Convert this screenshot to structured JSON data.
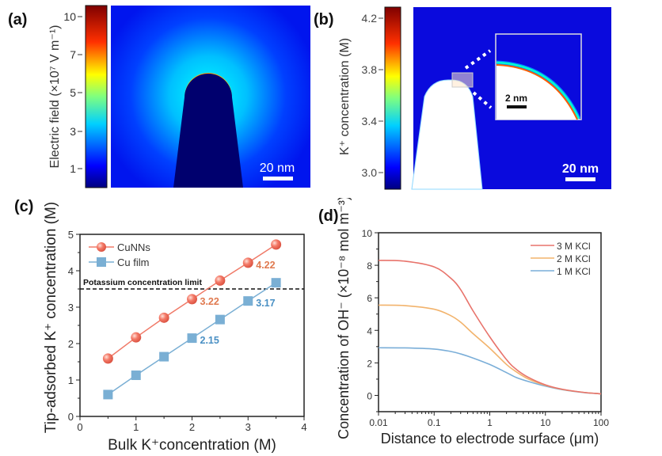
{
  "panels": {
    "a": {
      "label": "(a)",
      "colorbar_title": "Electric field (×10⁷ V m⁻¹)",
      "colorbar_ticks": [
        "10",
        "7",
        "5",
        "3",
        "1"
      ],
      "colorbar_range": [
        0,
        10.5
      ],
      "scale_bar": "20 nm"
    },
    "b": {
      "label": "(b)",
      "colorbar_title": "K⁺ concentration (M)",
      "colorbar_ticks": [
        "4.2",
        "3.8",
        "3.4",
        "3.0"
      ],
      "colorbar_range": [
        2.9,
        4.3
      ],
      "scale_bar": "20 nm",
      "inset_scale_bar": "2 nm"
    },
    "c": {
      "label": "(c)"
    },
    "d": {
      "label": "(d)"
    }
  },
  "chart_data": [
    {
      "type": "line",
      "panel": "c",
      "xlabel": "Bulk K⁺concentration (M)",
      "ylabel": "Tip-adsorbed K⁺ concentration (M)",
      "xlim": [
        0,
        4
      ],
      "ylim": [
        0,
        5
      ],
      "xticks": [
        "0",
        "1",
        "2",
        "3",
        "4"
      ],
      "yticks": [
        "0",
        "1",
        "2",
        "3",
        "4",
        "5"
      ],
      "x": [
        0.5,
        1.0,
        1.5,
        2.0,
        2.5,
        3.0,
        3.5
      ],
      "series": [
        {
          "name": "CuNNs",
          "marker": "circle",
          "color": "#f07a68",
          "label_color": "#e07a50",
          "values": [
            1.59,
            2.17,
            2.71,
            3.22,
            3.73,
            4.22,
            4.72
          ]
        },
        {
          "name": "Cu film",
          "marker": "square",
          "color": "#7aafd4",
          "label_color": "#4a90c4",
          "values": [
            0.6,
            1.13,
            1.64,
            2.15,
            2.66,
            3.17,
            3.67
          ]
        }
      ],
      "reference_line": {
        "label": "Potassium concentration limit",
        "y": 3.5
      },
      "annotations": [
        {
          "series": "CuNNs",
          "x": 2.0,
          "text": "3.22"
        },
        {
          "series": "CuNNs",
          "x": 3.0,
          "text": "4.22"
        },
        {
          "series": "Cu film",
          "x": 2.0,
          "text": "2.15"
        },
        {
          "series": "Cu film",
          "x": 3.0,
          "text": "3.17"
        }
      ],
      "legend_position": "top-left"
    },
    {
      "type": "line",
      "panel": "d",
      "xlabel": "Distance to electrode surface (μm)",
      "ylabel": "Concentration of OH⁻ (×10⁻⁸ mol m⁻³)",
      "xscale": "log",
      "xlim": [
        0.01,
        100
      ],
      "ylim": [
        -1,
        10
      ],
      "xticks": [
        "0.01",
        "0.1",
        "1",
        "10",
        "100"
      ],
      "yticks": [
        "0",
        "2",
        "4",
        "6",
        "8",
        "10"
      ],
      "x": [
        0.01,
        0.03,
        0.1,
        0.2,
        0.3,
        0.5,
        1,
        2,
        3,
        5,
        10,
        20,
        50,
        100
      ],
      "series": [
        {
          "name": "3 M KCl",
          "color": "#e8736b",
          "values": [
            8.3,
            8.25,
            7.9,
            7.2,
            6.5,
            5.2,
            3.6,
            2.2,
            1.6,
            1.1,
            0.65,
            0.38,
            0.18,
            0.1
          ]
        },
        {
          "name": "2 M KCl",
          "color": "#f2b36c",
          "values": [
            5.55,
            5.52,
            5.3,
            4.9,
            4.5,
            3.8,
            2.9,
            1.9,
            1.45,
            1.0,
            0.62,
            0.37,
            0.18,
            0.1
          ]
        },
        {
          "name": "1 M KCl",
          "color": "#7aaed8",
          "values": [
            2.93,
            2.92,
            2.85,
            2.7,
            2.55,
            2.3,
            1.9,
            1.4,
            1.1,
            0.85,
            0.57,
            0.35,
            0.17,
            0.1
          ]
        }
      ],
      "legend_position": "top-right"
    }
  ]
}
